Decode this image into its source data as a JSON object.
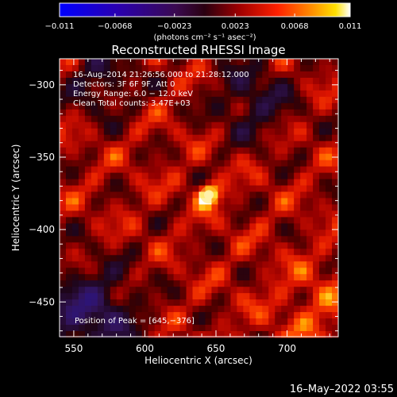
{
  "colorbar": {
    "ticks": [
      "−0.011",
      "−0.0068",
      "−0.0023",
      "0.0023",
      "0.0068",
      "0.011"
    ],
    "unit_label": "(photons cm⁻² s⁻¹ asec⁻²)",
    "range": [
      -0.011,
      0.011
    ]
  },
  "chart_data": {
    "type": "heatmap",
    "title": "Reconstructed RHESSI Image",
    "xlabel": "Heliocentric X (arcsec)",
    "ylabel": "Heliocentric Y (arcsec)",
    "xlim": [
      540,
      736
    ],
    "ylim": [
      -474,
      -282
    ],
    "x_ticks": [
      550,
      600,
      650,
      700
    ],
    "y_ticks": [
      -300,
      -350,
      -400,
      -450
    ],
    "x_tick_labels": [
      "550",
      "600",
      "650",
      "700"
    ],
    "y_tick_labels": [
      "−300",
      "−350",
      "−400",
      "−450"
    ],
    "annotations": [
      "16–Aug–2014 21:26:56.000 to 21:28:12.000",
      "Detectors: 3F 6F 9F, Att 0",
      "Energy Range: 6.0 − 12.0 keV",
      "Clean    Total counts: 3.47E+03"
    ],
    "peak_label": "Position of Peak = [645,−376]",
    "peak": {
      "x": 645,
      "y": -376,
      "value": 0.011
    },
    "colormap": "blue-purple-red-yellow-white"
  },
  "footer": {
    "timestamp": "16–May–2022 03:55"
  }
}
